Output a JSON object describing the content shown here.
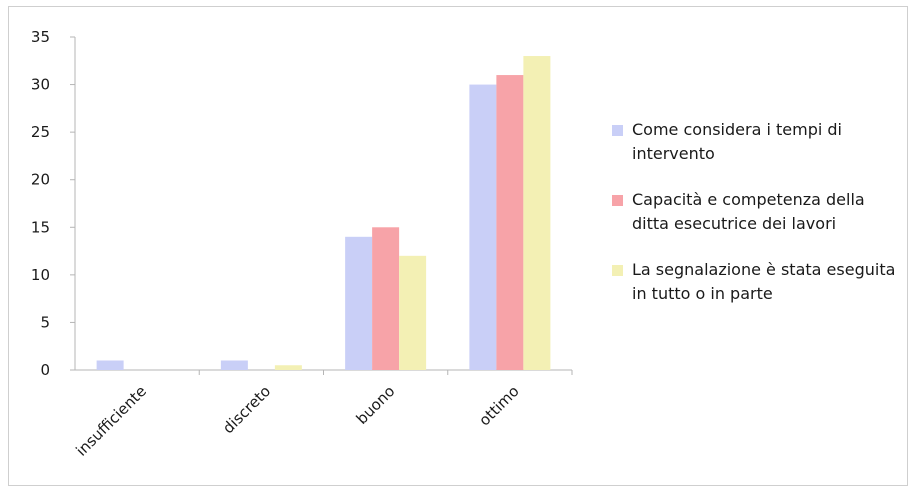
{
  "chart_data": {
    "type": "bar",
    "title": "",
    "xlabel": "",
    "ylabel": "",
    "categories": [
      "insufficiente",
      "discreto",
      "buono",
      "ottimo"
    ],
    "series": [
      {
        "name": "Come considera i tempi di intervento",
        "color": "#c9cff7",
        "values": [
          1,
          1,
          14,
          30
        ]
      },
      {
        "name": "Capacità e competenza della ditta esecutrice dei lavori",
        "color": "#f7a3a8",
        "values": [
          0,
          0,
          15,
          31
        ]
      },
      {
        "name": "La segnalazione è stata eseguita in tutto o in parte",
        "color": "#f3f0b4",
        "values": [
          0,
          0.5,
          12,
          33
        ]
      }
    ],
    "ylim": [
      0,
      35
    ],
    "yticks": [
      0,
      5,
      10,
      15,
      20,
      25,
      30,
      35
    ],
    "grid": false,
    "legend_position": "right"
  }
}
